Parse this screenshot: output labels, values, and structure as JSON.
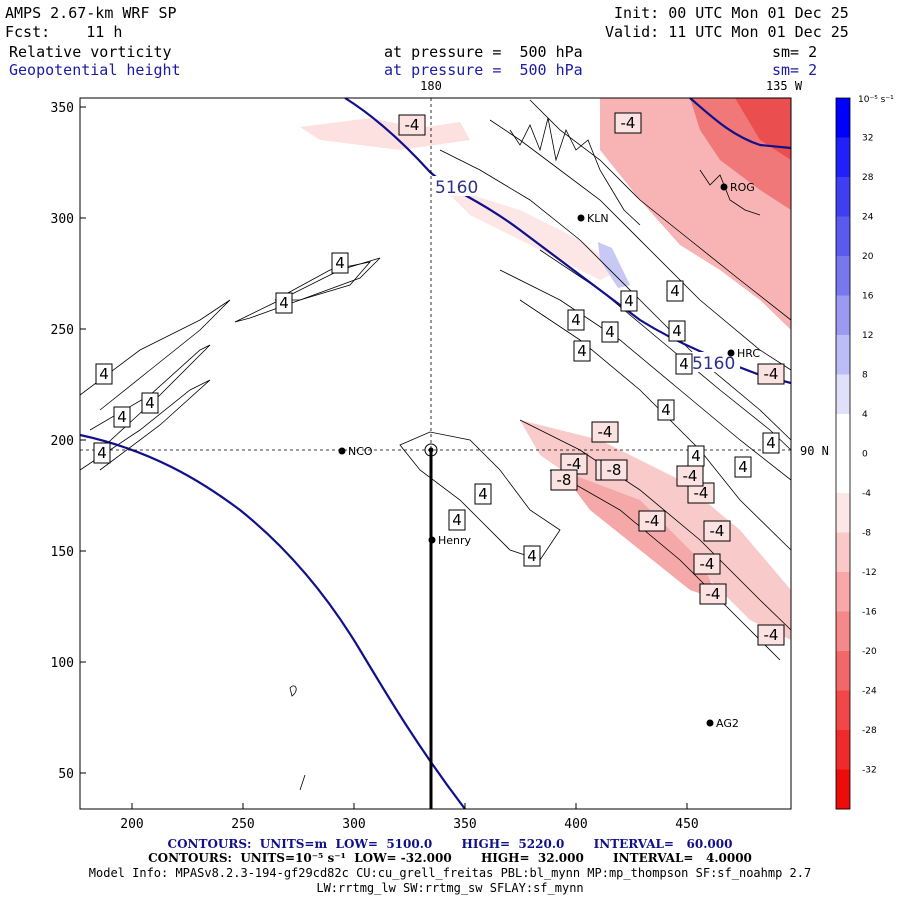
{
  "header": {
    "model": "AMPS 2.67-km WRF SP",
    "init_label": "Init:",
    "init_time": "00 UTC Mon 01 Dec 25",
    "fcst_label": "Fcst:",
    "fcst_hours": "11 h",
    "valid_label": "Valid:",
    "valid_time": "11 UTC Mon 01 Dec 25",
    "field1": "Relative vorticity",
    "field2": "Geopotential height",
    "level1": "at pressure =  500 hPa",
    "level2": "at pressure =  500 hPa",
    "sm1": "sm= 2",
    "sm2": "sm= 2"
  },
  "map": {
    "x_ticks": [
      "200",
      "250",
      "300",
      "350",
      "400",
      "450"
    ],
    "y_ticks": [
      "350",
      "300",
      "250",
      "200",
      "150",
      "100",
      "50"
    ],
    "meridian_label_180": "180",
    "meridian_label_135w": "135 W",
    "parallel_label_90n": "90 N",
    "height_labels": [
      "5160",
      "5160"
    ],
    "vort_labels": [
      "4",
      "4",
      "4",
      "4",
      "4",
      "4",
      "4",
      "4",
      "4",
      "4",
      "4",
      "4",
      "4",
      "4",
      "4",
      "4",
      "4",
      "4",
      "4",
      "4",
      "-4",
      "-4",
      "-4",
      "-4",
      "-4",
      "-4",
      "-4",
      "-4",
      "-4",
      "-4",
      "-4",
      "-4",
      "-4",
      "-8",
      "-8"
    ],
    "stations": [
      {
        "id": "NCO"
      },
      {
        "id": "Henry"
      },
      {
        "id": "AG2"
      },
      {
        "id": "KLN"
      },
      {
        "id": "ROG"
      },
      {
        "id": "HRC"
      }
    ]
  },
  "colorbar": {
    "unit": "10⁻⁵ s⁻¹",
    "levels": [
      "32",
      "28",
      "24",
      "20",
      "16",
      "12",
      "8",
      "4",
      "0",
      "-4",
      "-8",
      "-12",
      "-16",
      "-20",
      "-24",
      "-28",
      "-32"
    ],
    "colors": [
      "#0000ff",
      "#2020f8",
      "#3f3ff2",
      "#5a5aee",
      "#7878ee",
      "#9a9af2",
      "#bcbcf6",
      "#e0e0fa",
      "#ffffff",
      "#ffffff",
      "#fde6e6",
      "#fbc8c8",
      "#f8a8a8",
      "#f58888",
      "#f26868",
      "#f04848",
      "#ee2a2a",
      "#ec0c0c"
    ]
  },
  "footer": {
    "line1": "CONTOURS:  UNITS=m  LOW=  5100.0       HIGH=  5220.0       INTERVAL=   60.000",
    "line2": "CONTOURS:  UNITS=10⁻⁵ s⁻¹  LOW= -32.000       HIGH=  32.000       INTERVAL=   4.0000",
    "line3": "Model Info: MPASv8.2.3-194-gf29cd82c CU:cu_grell_freitas PBL:bl_mynn MP:mp_thompson SF:sf_noahmp 2.7",
    "line4": "LW:rrtmg_lw SW:rrtmg_sw SFLAY:sf_mynn"
  }
}
